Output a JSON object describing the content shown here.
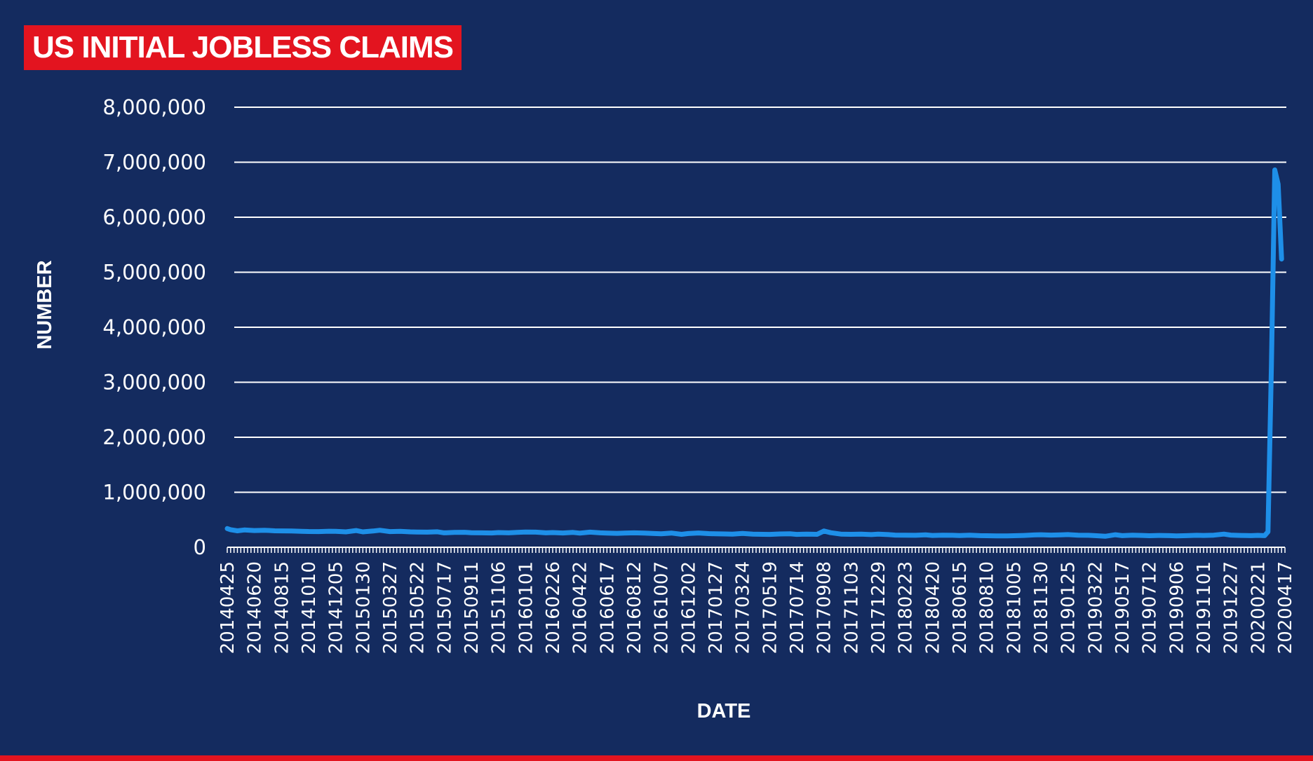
{
  "chart_data": {
    "type": "line",
    "title": "US INITIAL JOBLESS CLAIMS",
    "xlabel": "DATE",
    "ylabel": "NUMBER",
    "ylim": [
      0,
      8000000
    ],
    "yticks": [
      "0",
      "1,000,000",
      "2,000,000",
      "3,000,000",
      "4,000,000",
      "5,000,000",
      "6,000,000",
      "7,000,000",
      "8,000,000"
    ],
    "grid": true,
    "x_tick_labels": [
      "20140425",
      "20140620",
      "20140815",
      "20141010",
      "20141205",
      "20150130",
      "20150327",
      "20150522",
      "20150717",
      "20150911",
      "20151106",
      "20160101",
      "20160226",
      "20160422",
      "20160617",
      "20160812",
      "20161007",
      "20161202",
      "20170127",
      "20170324",
      "20170519",
      "20170714",
      "20170908",
      "20171103",
      "20171229",
      "20180223",
      "20180420",
      "20180615",
      "20180810",
      "20181005",
      "20181130",
      "20190125",
      "20190322",
      "20190517",
      "20190712",
      "20190906",
      "20191101",
      "20191227",
      "20200221",
      "20200417"
    ],
    "series": [
      {
        "name": "",
        "color": "#1e8fe8",
        "points": [
          [
            "20140425",
            340000
          ],
          [
            "20140502",
            320000
          ],
          [
            "20140516",
            300000
          ],
          [
            "20140530",
            315000
          ],
          [
            "20140620",
            305000
          ],
          [
            "20140711",
            310000
          ],
          [
            "20140801",
            300000
          ],
          [
            "20140815",
            298000
          ],
          [
            "20140905",
            295000
          ],
          [
            "20140926",
            290000
          ],
          [
            "20141010",
            287000
          ],
          [
            "20141031",
            285000
          ],
          [
            "20141121",
            292000
          ],
          [
            "20141205",
            290000
          ],
          [
            "20141226",
            280000
          ],
          [
            "20150116",
            305000
          ],
          [
            "20150130",
            280000
          ],
          [
            "20150220",
            295000
          ],
          [
            "20150306",
            310000
          ],
          [
            "20150327",
            285000
          ],
          [
            "20150417",
            290000
          ],
          [
            "20150508",
            280000
          ],
          [
            "20150522",
            278000
          ],
          [
            "20150612",
            275000
          ],
          [
            "20150703",
            282000
          ],
          [
            "20150717",
            262000
          ],
          [
            "20150807",
            270000
          ],
          [
            "20150828",
            272000
          ],
          [
            "20150911",
            265000
          ],
          [
            "20151002",
            262000
          ],
          [
            "20151023",
            260000
          ],
          [
            "20151106",
            268000
          ],
          [
            "20151127",
            262000
          ],
          [
            "20151218",
            272000
          ],
          [
            "20160101",
            278000
          ],
          [
            "20160122",
            275000
          ],
          [
            "20160212",
            262000
          ],
          [
            "20160226",
            268000
          ],
          [
            "20160318",
            260000
          ],
          [
            "20160408",
            270000
          ],
          [
            "20160422",
            257000
          ],
          [
            "20160513",
            275000
          ],
          [
            "20160603",
            262000
          ],
          [
            "20160617",
            258000
          ],
          [
            "20160708",
            254000
          ],
          [
            "20160729",
            260000
          ],
          [
            "20160812",
            262000
          ],
          [
            "20160902",
            259000
          ],
          [
            "20160923",
            250000
          ],
          [
            "20161007",
            246000
          ],
          [
            "20161028",
            258000
          ],
          [
            "20161118",
            236000
          ],
          [
            "20161202",
            250000
          ],
          [
            "20161223",
            260000
          ],
          [
            "20170113",
            248000
          ],
          [
            "20170127",
            245000
          ],
          [
            "20170217",
            242000
          ],
          [
            "20170303",
            240000
          ],
          [
            "20170324",
            252000
          ],
          [
            "20170414",
            240000
          ],
          [
            "20170505",
            236000
          ],
          [
            "20170519",
            234000
          ],
          [
            "20170609",
            242000
          ],
          [
            "20170630",
            244000
          ],
          [
            "20170714",
            235000
          ],
          [
            "20170804",
            240000
          ],
          [
            "20170825",
            236000
          ],
          [
            "20170908",
            295000
          ],
          [
            "20170922",
            265000
          ],
          [
            "20171013",
            240000
          ],
          [
            "20171103",
            236000
          ],
          [
            "20171124",
            238000
          ],
          [
            "20171215",
            230000
          ],
          [
            "20171229",
            240000
          ],
          [
            "20180119",
            230000
          ],
          [
            "20180202",
            222000
          ],
          [
            "20180223",
            220000
          ],
          [
            "20180316",
            218000
          ],
          [
            "20180406",
            225000
          ],
          [
            "20180420",
            215000
          ],
          [
            "20180511",
            220000
          ],
          [
            "20180601",
            218000
          ],
          [
            "20180615",
            214000
          ],
          [
            "20180706",
            220000
          ],
          [
            "20180727",
            212000
          ],
          [
            "20180810",
            210000
          ],
          [
            "20180831",
            207000
          ],
          [
            "20180921",
            208000
          ],
          [
            "20181005",
            210000
          ],
          [
            "20181026",
            215000
          ],
          [
            "20181116",
            224000
          ],
          [
            "20181130",
            228000
          ],
          [
            "20181221",
            222000
          ],
          [
            "20190111",
            225000
          ],
          [
            "20190125",
            230000
          ],
          [
            "20190215",
            220000
          ],
          [
            "20190308",
            218000
          ],
          [
            "20190322",
            212000
          ],
          [
            "20190412",
            200000
          ],
          [
            "20190503",
            228000
          ],
          [
            "20190517",
            212000
          ],
          [
            "20190607",
            220000
          ],
          [
            "20190628",
            215000
          ],
          [
            "20190712",
            210000
          ],
          [
            "20190802",
            215000
          ],
          [
            "20190823",
            212000
          ],
          [
            "20190906",
            208000
          ],
          [
            "20190927",
            212000
          ],
          [
            "20191018",
            218000
          ],
          [
            "20191101",
            215000
          ],
          [
            "20191122",
            220000
          ],
          [
            "20191213",
            240000
          ],
          [
            "20191227",
            222000
          ],
          [
            "20200117",
            215000
          ],
          [
            "20200207",
            212000
          ],
          [
            "20200221",
            216000
          ],
          [
            "20200306",
            211000
          ],
          [
            "20200313",
            282000
          ],
          [
            "20200320",
            3300000
          ],
          [
            "20200327",
            6860000
          ],
          [
            "20200403",
            6600000
          ],
          [
            "20200410",
            5240000
          ]
        ]
      }
    ]
  }
}
